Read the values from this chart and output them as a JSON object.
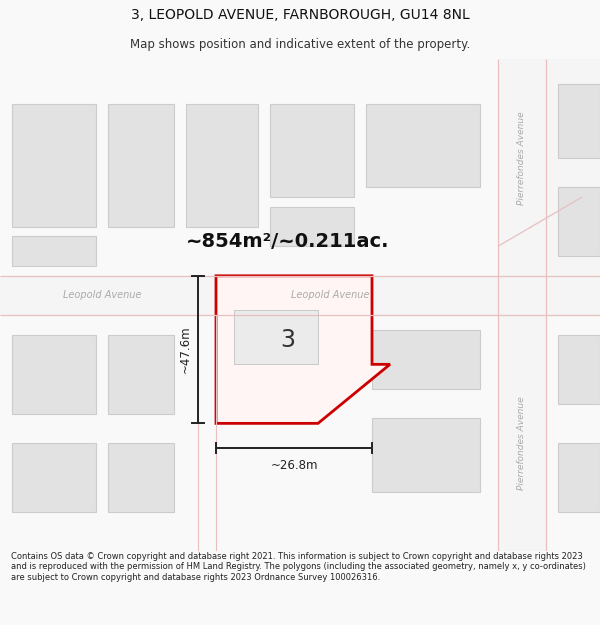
{
  "title_line1": "3, LEOPOLD AVENUE, FARNBOROUGH, GU14 8NL",
  "title_line2": "Map shows position and indicative extent of the property.",
  "area_text": "~854m²/~0.211ac.",
  "dim_height": "~47.6m",
  "dim_width": "~26.8m",
  "plot_number": "3",
  "street_label_left": "Leopold Avenue",
  "street_label_right": "Leopold Avenue",
  "street_label_vert_top": "Pierrefondes Avenue",
  "street_label_vert_bot": "Pierrefondes Avenue",
  "footer_text": "Contains OS data © Crown copyright and database right 2021. This information is subject to Crown copyright and database rights 2023 and is reproduced with the permission of HM Land Registry. The polygons (including the associated geometry, namely x, y co-ordinates) are subject to Crown copyright and database rights 2023 Ordnance Survey 100026316.",
  "bg_color": "#f9f9f9",
  "map_bg": "#ffffff",
  "plot_fill": "#fff5f5",
  "plot_edge": "#cc0000",
  "building_fill": "#e2e2e2",
  "building_edge": "#cccccc",
  "road_color": "#f5f5f5",
  "road_line_color": "#e8c0c0",
  "street_text_color": "#aaaaaa",
  "dim_color": "#222222",
  "area_text_color": "#111111",
  "title_fontsize": 10,
  "subtitle_fontsize": 8.5,
  "footer_fontsize": 6.0
}
